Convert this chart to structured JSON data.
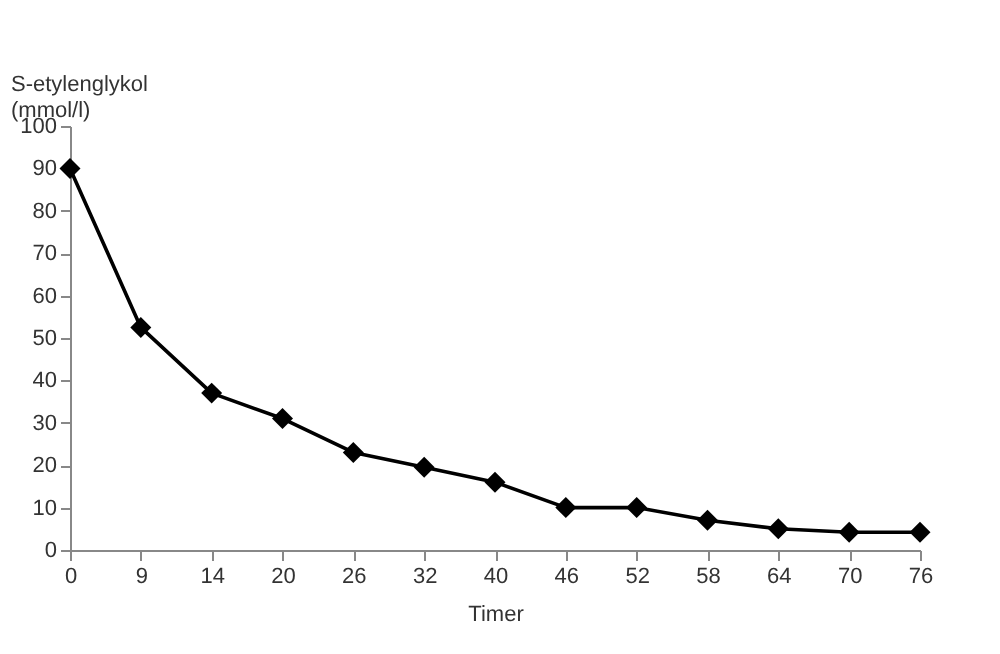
{
  "chart_data": {
    "type": "line",
    "xlabel": "Timer",
    "ylabel": "S-etylenglykol (mmol/l)",
    "categories": [
      "0",
      "9",
      "14",
      "20",
      "26",
      "32",
      "40",
      "46",
      "52",
      "58",
      "64",
      "70",
      "76"
    ],
    "series": [
      {
        "color": "#000000",
        "values": [
          90,
          52.5,
          37,
          31,
          23,
          19.5,
          16,
          10,
          10,
          7,
          5,
          4.2,
          4.2
        ]
      }
    ],
    "ylim": [
      0,
      100
    ],
    "yticks": [
      0,
      10,
      20,
      30,
      40,
      50,
      60,
      70,
      80,
      90,
      100
    ],
    "marker": "diamond",
    "line_style": "solid",
    "grid": false,
    "legend": false
  }
}
